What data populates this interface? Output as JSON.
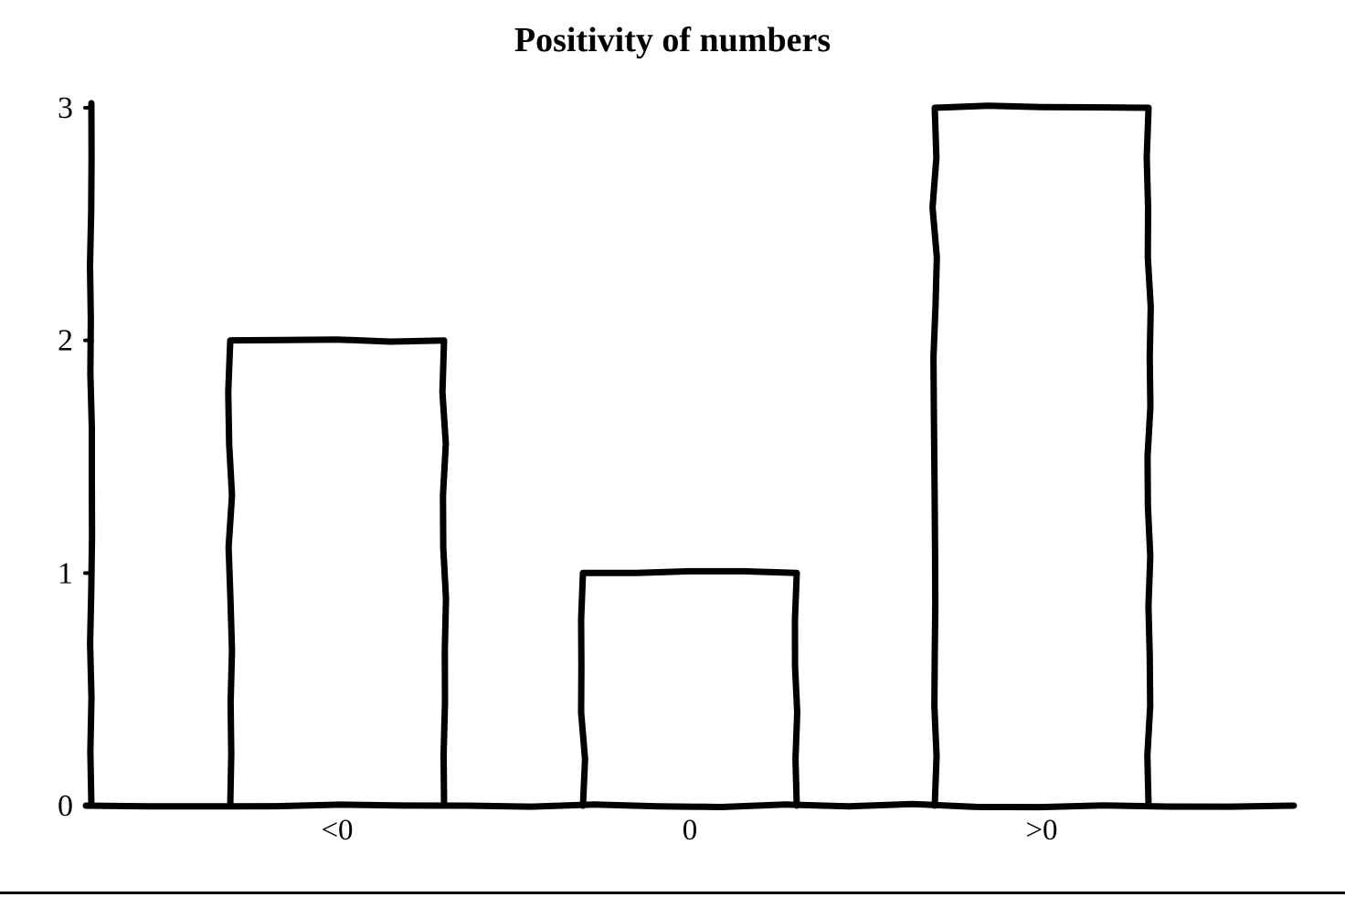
{
  "chart_data": {
    "type": "bar",
    "title": "Positivity of numbers",
    "categories": [
      "<0",
      "0",
      ">0"
    ],
    "values": [
      2,
      1,
      3
    ],
    "yticks": [
      "0",
      "1",
      "2",
      "3"
    ],
    "ylim": [
      0,
      3
    ],
    "xlabel": "",
    "ylabel": "",
    "grid": false,
    "legend": "none",
    "style": {
      "stroke_color": "#000000",
      "bar_fill": "#ffffff",
      "background": "#ffffff",
      "hand_drawn": true
    }
  },
  "footer": {
    "divider_color": "#000000"
  }
}
